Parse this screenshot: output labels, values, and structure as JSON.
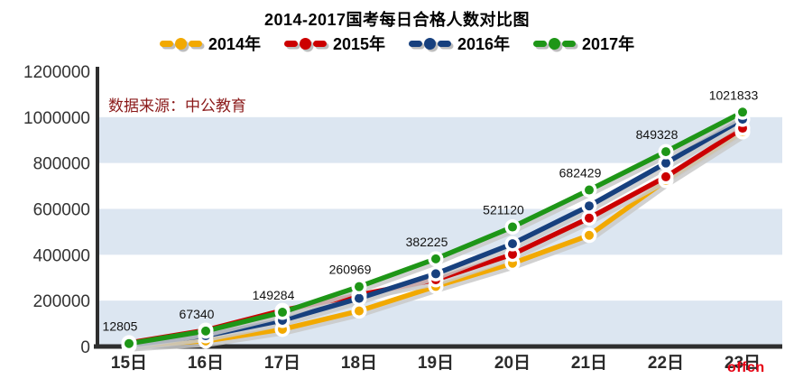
{
  "title": "2014-2017国考每日合格人数对比图",
  "source_note": "数据来源：中公教育",
  "watermark": "offcn",
  "chart_data": {
    "type": "line",
    "title": "2014-2017国考每日合格人数对比图",
    "xlabel": "",
    "ylabel": "",
    "categories": [
      "15日",
      "16日",
      "17日",
      "18日",
      "19日",
      "20日",
      "21日",
      "22日",
      "23日"
    ],
    "series": [
      {
        "key": "2014",
        "name": "2014年",
        "color": "#F2A900",
        "values": [
          4000,
          24000,
          75000,
          155000,
          262000,
          363000,
          485000,
          724000,
          936000
        ],
        "values_estimated": true
      },
      {
        "key": "2015",
        "name": "2015年",
        "color": "#CC0000",
        "values": [
          16000,
          71000,
          157000,
          225000,
          291000,
          402000,
          560000,
          740000,
          952000
        ],
        "values_estimated": true
      },
      {
        "key": "2016",
        "name": "2016年",
        "color": "#17407E",
        "values": [
          6000,
          47000,
          114000,
          210000,
          317000,
          448000,
          613000,
          800000,
          991000
        ],
        "values_estimated": true
      },
      {
        "key": "2017",
        "name": "2017年",
        "color": "#1E9617",
        "values": [
          12805,
          67340,
          149284,
          260969,
          382225,
          521120,
          682429,
          849328,
          1021833
        ],
        "values_estimated": false
      }
    ],
    "show_labels_for": "2017",
    "data_labels": [
      12805,
      67340,
      149284,
      260969,
      382225,
      521120,
      682429,
      849328,
      1021833
    ],
    "y_ticks": [
      0,
      200000,
      400000,
      600000,
      800000,
      1000000,
      1200000
    ],
    "ylim": [
      0,
      1200000
    ],
    "grid": "alternating-horizontal-bands",
    "band_color": "#DCE6F1",
    "axis_color": "#2E2E2E",
    "shadow_color": "#C9C9C9",
    "legend_position": "top"
  }
}
